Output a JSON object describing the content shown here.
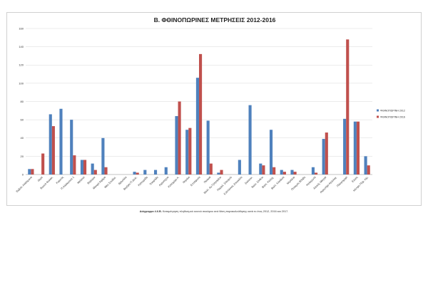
{
  "caption": {
    "label": "Διάγραμμα 4.6.Β.",
    "text": "Καταμέτρηση πληθυσμού κοινού σκούφου ανά θέση παρακολούθησης κατά το έτος 2012, 2016 και 2017."
  },
  "chart_data": {
    "type": "bar",
    "title": "Β. ΦΘΙΝΟΠΩΡΙΝΕΣ ΜΕΤΡΗΣΕΙΣ 2012-2016",
    "xlabel": "",
    "ylabel": "",
    "ylim": [
      0,
      160
    ],
    "yticks": [
      0,
      20,
      40,
      60,
      80,
      100,
      120,
      140,
      160
    ],
    "grid": true,
    "legend_position": "right",
    "categories": [
      "Εκβολ. Αλιάκμονα",
      "Δεμα",
      "Βουνό Φυλάκ.",
      "Κορινός",
      "Π.Αλιάκμονα 1",
      "Μελίσσι",
      "Βαρύμικ",
      "Μακρύ Αφάρα",
      "Μεσ Συνδέσ.",
      "Βρεσάλα",
      "Βεγέρα Π.Δελτ.",
      "Καλογρίδα",
      "Τσαιρόδα",
      "Αγροτέχνα",
      "Καλοχώρι Λ.",
      "Νησάκι",
      "Επτάφωτα",
      "Παλαιά",
      "Βαλτ. Αγ.Γρηγορίου",
      "Παραλ. Σταυρού",
      "Κολπίσκος Ζουγκάτο",
      "Σαλονικ.",
      "Βαλτ. Σίνδου",
      "Βαλτ. Καλοχ.",
      "Βαλτ. Κλειδιού",
      "Νησάκια",
      "Ποταμός Βόλβη",
      "Καλαμωτό",
      "Αλυκές Μαγγά",
      "Ακρωτήρι Αγγελοχ.",
      "Πλαγιοχώρι",
      "Ελούς",
      "Κέντρο Πύρ. Λίμ."
    ],
    "series": [
      {
        "name": "ΦΘΙΝΟΠΩΡΙΝΗ 2012",
        "color": "#4f81bd",
        "values": [
          6,
          0,
          66,
          72,
          60,
          16,
          12,
          40,
          0,
          0,
          3,
          5,
          5,
          8,
          64,
          49,
          106,
          59,
          2,
          0,
          16,
          76,
          12,
          49,
          5,
          5,
          0,
          8,
          39,
          0,
          61,
          58,
          20
        ]
      },
      {
        "name": "ΦΘΙΝΟΠΩΡΙΝΗ 2016",
        "color": "#c0504d",
        "values": [
          6,
          23,
          53,
          0,
          21,
          16,
          5,
          8,
          0,
          0,
          2,
          0,
          0,
          0,
          80,
          51,
          132,
          12,
          5,
          0,
          0,
          0,
          10,
          8,
          3,
          3,
          0,
          2,
          46,
          0,
          148,
          58,
          10
        ]
      }
    ]
  }
}
